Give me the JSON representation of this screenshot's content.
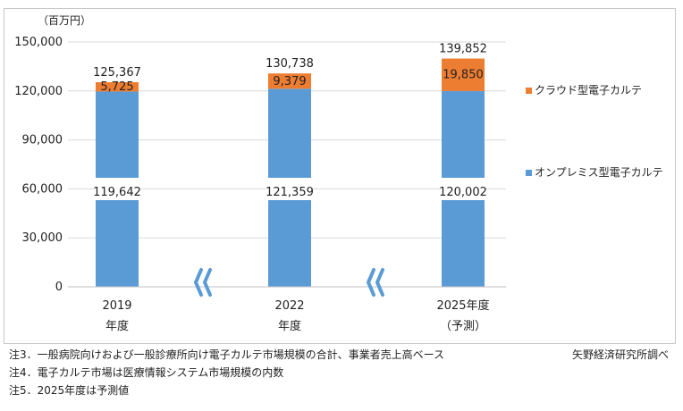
{
  "chart_data": {
    "type": "bar",
    "stacked": true,
    "unit_label": "（百万円）",
    "categories": [
      {
        "line1": "2019",
        "line2": "年度"
      },
      {
        "line1": "2022",
        "line2": "年度"
      },
      {
        "line1": "2025年度",
        "line2": "（予測）"
      }
    ],
    "series": [
      {
        "name": "オンプレミス型電子カルテ",
        "color": "#5b9bd5",
        "values": [
          119642,
          121359,
          120002
        ],
        "labels": [
          "119,642",
          "121,359",
          "120,002"
        ]
      },
      {
        "name": "クラウド型電子カルテ",
        "color": "#ed7d31",
        "values": [
          5725,
          9379,
          19850
        ],
        "labels": [
          "5,725",
          "9,379",
          "19,850"
        ]
      }
    ],
    "totals": [
      "125,367",
      "130,738",
      "139,852"
    ],
    "y_ticks": [
      {
        "value": 0,
        "label": "0"
      },
      {
        "value": 30000,
        "label": "30,000"
      },
      {
        "value": 60000,
        "label": "60,000"
      },
      {
        "value": 90000,
        "label": "90,000"
      },
      {
        "value": 120000,
        "label": "120,000"
      },
      {
        "value": 150000,
        "label": "150,000"
      }
    ],
    "ylim": [
      0,
      150000
    ],
    "axis_break": true,
    "grid": true,
    "legend_position": "right"
  },
  "notes": [
    "注3．一般病院向けおよび一般診療所向け電子カルテ市場規模の合計、事業者売上高ベース",
    "注4．電子カルテ市場は医療情報システム市場規模の内数",
    "注5．2025年度は予測値"
  ],
  "source": "矢野経済研究所調べ"
}
